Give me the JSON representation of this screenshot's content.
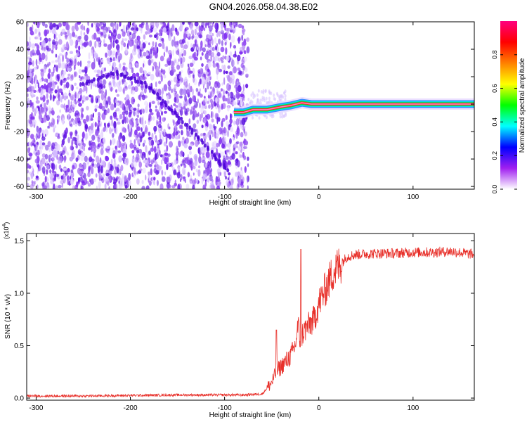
{
  "figure": {
    "title": "GN04.2026.058.04.38.E02"
  },
  "chart_data": [
    {
      "type": "heatmap",
      "xlabel": "Height of straight line (km)",
      "ylabel": "Frequency (Hz)",
      "xlim": [
        -310,
        165
      ],
      "ylim": [
        -62,
        60
      ],
      "xticks": [
        -300,
        -200,
        -100,
        0,
        100
      ],
      "yticks": [
        -60,
        -40,
        -20,
        0,
        20,
        40,
        60
      ],
      "noise_region": {
        "x": [
          -310,
          -75
        ],
        "y": [
          -62,
          60
        ]
      },
      "curved_trace": [
        {
          "x": -250,
          "y": 15
        },
        {
          "x": -215,
          "y": 23
        },
        {
          "x": -185,
          "y": 15
        },
        {
          "x": -155,
          "y": -5
        },
        {
          "x": -125,
          "y": -27
        },
        {
          "x": -95,
          "y": -50
        }
      ],
      "ridge": [
        {
          "x": -90,
          "y": -6
        },
        {
          "x": -80,
          "y": -6
        },
        {
          "x": -70,
          "y": -4
        },
        {
          "x": -55,
          "y": -4
        },
        {
          "x": -40,
          "y": -2
        },
        {
          "x": -30,
          "y": -1
        },
        {
          "x": -18,
          "y": 1
        },
        {
          "x": -8,
          "y": 0
        },
        {
          "x": 0,
          "y": 0
        },
        {
          "x": 40,
          "y": 0
        },
        {
          "x": 80,
          "y": 0
        },
        {
          "x": 120,
          "y": 0
        },
        {
          "x": 165,
          "y": 0
        }
      ],
      "colorbar": {
        "label": "Normalized spectral amplitude",
        "range": [
          0,
          1
        ],
        "ticks": [
          0.0,
          0.2,
          0.4,
          0.6,
          0.8
        ],
        "tick_labels": [
          "0.0",
          "0.2",
          "0.4",
          "0.6",
          "0.8"
        ],
        "colors": [
          "#ffffff",
          "#a020f0",
          "#0000ff",
          "#00ffff",
          "#00ff00",
          "#ffff00",
          "#ff8000",
          "#ff0000",
          "#ff007f"
        ]
      }
    },
    {
      "type": "line",
      "xlabel": "Height of straight line (km)",
      "ylabel": "SNR (10 * v/v)",
      "y_multiplier": "(x10",
      "y_multiplier_exp": "4",
      "y_multiplier_close": ")",
      "xlim": [
        -310,
        165
      ],
      "ylim": [
        -0.02,
        1.57
      ],
      "xticks": [
        -300,
        -200,
        -100,
        0,
        100
      ],
      "yticks": [
        0.0,
        0.5,
        1.0,
        1.5
      ],
      "ytick_labels": [
        "0.0",
        "0.5",
        "1.0",
        "1.5"
      ],
      "color": "#e8302a",
      "x": [
        -310,
        -280,
        -250,
        -200,
        -150,
        -100,
        -80,
        -60,
        -50,
        -45,
        -40,
        -35,
        -30,
        -25,
        -22,
        -20,
        -18,
        -15,
        -10,
        -5,
        0,
        5,
        10,
        15,
        20,
        25,
        30,
        40,
        60,
        80,
        100,
        120,
        140,
        165
      ],
      "y": [
        0.02,
        0.02,
        0.02,
        0.025,
        0.03,
        0.03,
        0.03,
        0.04,
        0.15,
        0.25,
        0.3,
        0.35,
        0.4,
        0.5,
        0.7,
        0.55,
        0.6,
        0.65,
        0.7,
        0.75,
        0.9,
        1.0,
        1.1,
        1.2,
        1.25,
        1.3,
        1.35,
        1.37,
        1.38,
        1.38,
        1.39,
        1.39,
        1.4,
        1.37
      ],
      "spikes": [
        {
          "x": -19,
          "y": 1.42
        },
        {
          "x": -45,
          "y": 0.65
        }
      ]
    }
  ]
}
